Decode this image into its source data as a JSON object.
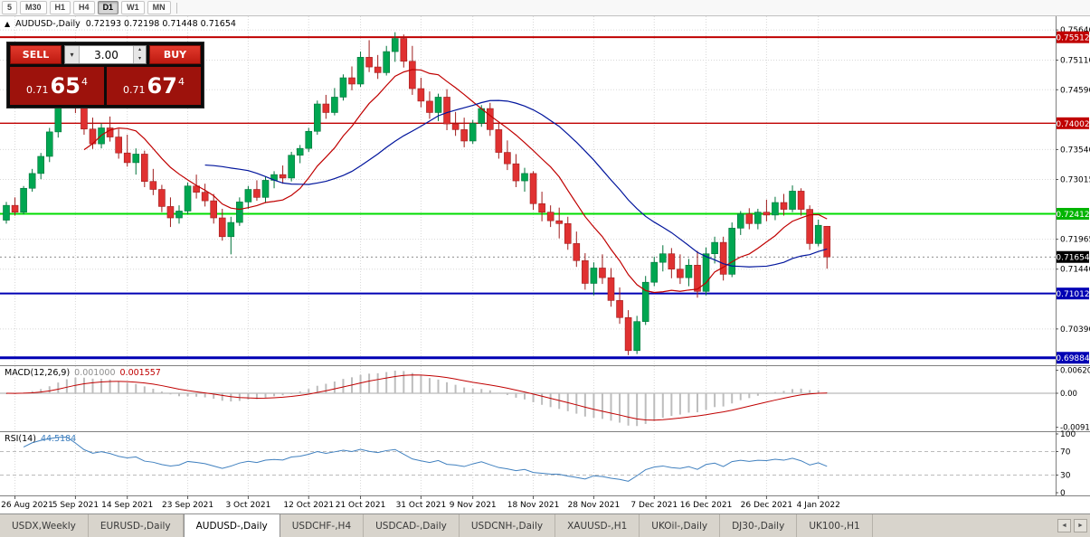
{
  "icons": {
    "chart": "▲",
    "caret_down": "▾",
    "caret_up": "▴",
    "scroll_left": "◄",
    "scroll_right": "►"
  },
  "toolbar": {
    "timeframes": [
      {
        "label": "5",
        "active": false
      },
      {
        "label": "M30",
        "active": false
      },
      {
        "label": "H1",
        "active": false
      },
      {
        "label": "H4",
        "active": false
      },
      {
        "label": "D1",
        "active": true
      },
      {
        "label": "W1",
        "active": false
      },
      {
        "label": "MN",
        "active": false
      }
    ]
  },
  "chart": {
    "symbol": "AUDUSD-,Daily",
    "ohlc": "0.72193 0.72198 0.71448 0.71654"
  },
  "trade_panel": {
    "sell_label": "SELL",
    "buy_label": "BUY",
    "volume": "3.00",
    "sell_base": "0.71",
    "sell_big": "65",
    "sell_sup": "4",
    "buy_base": "0.71",
    "buy_big": "67",
    "buy_sup": "4"
  },
  "tabs": [
    {
      "label": "USDX,Weekly",
      "active": false
    },
    {
      "label": "EURUSD-,Daily",
      "active": false
    },
    {
      "label": "AUDUSD-,Daily",
      "active": true
    },
    {
      "label": "USDCHF-,H4",
      "active": false
    },
    {
      "label": "USDCAD-,Daily",
      "active": false
    },
    {
      "label": "USDCNH-,Daily",
      "active": false
    },
    {
      "label": "XAUUSD-,H1",
      "active": false
    },
    {
      "label": "UKOil-,Daily",
      "active": false
    },
    {
      "label": "DJ30-,Daily",
      "active": false
    },
    {
      "label": "UK100-,H1",
      "active": false
    }
  ],
  "chart_data": {
    "type": "candlestick",
    "symbol": "AUDUSD-",
    "timeframe": "Daily",
    "ohlc_current": {
      "open": 0.72193,
      "high": 0.72198,
      "low": 0.71448,
      "close": 0.71654
    },
    "current_price": {
      "label": "0.71654",
      "price": 0.71654
    },
    "colors": {
      "bull": "#00A651",
      "bull_border": "#00733A",
      "bear": "#E03131",
      "bear_border": "#9E1C1C",
      "grid": "#D8D8D8",
      "macd_hist": "#BDBDBD",
      "macd_signal": "#C00000"
    },
    "y_ticks": [
      {
        "label": "0.75640",
        "price": 0.7564,
        "style": "grid"
      },
      {
        "label": "0.75512",
        "price": 0.75512,
        "style": "red"
      },
      {
        "label": "0.75110",
        "price": 0.7511,
        "style": "grid"
      },
      {
        "label": "0.74590",
        "price": 0.7459,
        "style": "grid"
      },
      {
        "label": "0.74002",
        "price": 0.74002,
        "style": "red"
      },
      {
        "label": "0.73540",
        "price": 0.7354,
        "style": "grid"
      },
      {
        "label": "0.73015",
        "price": 0.73015,
        "style": "grid"
      },
      {
        "label": "0.72412",
        "price": 0.72412,
        "style": "green"
      },
      {
        "label": "0.71965",
        "price": 0.71965,
        "style": "grid"
      },
      {
        "label": "0.71654",
        "price": 0.71654,
        "style": "black"
      },
      {
        "label": "0.71440",
        "price": 0.7144,
        "style": "grid"
      },
      {
        "label": "0.71012",
        "price": 0.71012,
        "style": "blue"
      },
      {
        "label": "0.70390",
        "price": 0.7039,
        "style": "grid"
      },
      {
        "label": "0.69884",
        "price": 0.69884,
        "style": "blue"
      }
    ],
    "hlines": [
      {
        "price": 0.75512,
        "color": "#C00000",
        "width": 2
      },
      {
        "price": 0.74002,
        "color": "#C00000",
        "width": 1.3
      },
      {
        "price": 0.72412,
        "color": "#00DC00",
        "width": 2
      },
      {
        "price": 0.71012,
        "color": "#0000B4",
        "width": 2
      },
      {
        "price": 0.69884,
        "color": "#0000B4",
        "width": 3
      }
    ],
    "x_ticks": [
      {
        "label": "26 Aug 2021",
        "i": 1
      },
      {
        "label": "5 Sep 2021",
        "i": 8
      },
      {
        "label": "14 Sep 2021",
        "i": 14
      },
      {
        "label": "23 Sep 2021",
        "i": 21
      },
      {
        "label": "3 Oct 2021",
        "i": 28
      },
      {
        "label": "12 Oct 2021",
        "i": 35
      },
      {
        "label": "21 Oct 2021",
        "i": 41
      },
      {
        "label": "31 Oct 2021",
        "i": 48
      },
      {
        "label": "9 Nov 2021",
        "i": 54
      },
      {
        "label": "18 Nov 2021",
        "i": 61
      },
      {
        "label": "28 Nov 2021",
        "i": 68
      },
      {
        "label": "7 Dec 2021",
        "i": 75
      },
      {
        "label": "16 Dec 2021",
        "i": 81
      },
      {
        "label": "26 Dec 2021",
        "i": 88
      },
      {
        "label": "4 Jan 2022",
        "i": 94
      }
    ],
    "ma": [
      {
        "name": "ma-fast-line",
        "type": "sma",
        "period": 10,
        "color": "#C00000"
      },
      {
        "name": "ma-slow-line",
        "type": "sma",
        "period": 24,
        "color": "#00149C"
      }
    ],
    "macd": {
      "title": "MACD(12,26,9)",
      "value1": "0.001000",
      "value2": "0.001557",
      "axis": [
        "0.0062010",
        "0.00",
        "-0.0091910"
      ],
      "fast": 12,
      "slow": 26,
      "signal": 9
    },
    "rsi": {
      "title": "RSI(14)",
      "value": "44.5184",
      "axis": [
        "100",
        "70",
        "30",
        "0"
      ],
      "levels": [
        70,
        30
      ],
      "period": 14,
      "color": "#4080BF"
    },
    "candles": [
      [
        0.723,
        0.7262,
        0.7224,
        0.7256
      ],
      [
        0.7256,
        0.727,
        0.7238,
        0.7244
      ],
      [
        0.7244,
        0.729,
        0.724,
        0.7286
      ],
      [
        0.7286,
        0.732,
        0.728,
        0.7312
      ],
      [
        0.7312,
        0.7348,
        0.7302,
        0.7342
      ],
      [
        0.7342,
        0.7392,
        0.7332,
        0.7385
      ],
      [
        0.7385,
        0.7445,
        0.7375,
        0.7438
      ],
      [
        0.7438,
        0.7478,
        0.7428,
        0.7455
      ],
      [
        0.7455,
        0.747,
        0.7418,
        0.7428
      ],
      [
        0.7428,
        0.7444,
        0.738,
        0.739
      ],
      [
        0.739,
        0.741,
        0.7355,
        0.7364
      ],
      [
        0.7364,
        0.74,
        0.7356,
        0.7392
      ],
      [
        0.7392,
        0.7412,
        0.7368,
        0.7376
      ],
      [
        0.7376,
        0.739,
        0.7338,
        0.7348
      ],
      [
        0.7348,
        0.738,
        0.7324,
        0.7331
      ],
      [
        0.7331,
        0.7356,
        0.731,
        0.7346
      ],
      [
        0.7346,
        0.7352,
        0.7288,
        0.7298
      ],
      [
        0.7298,
        0.732,
        0.7274,
        0.7284
      ],
      [
        0.7284,
        0.7292,
        0.7244,
        0.7254
      ],
      [
        0.7254,
        0.727,
        0.7218,
        0.7234
      ],
      [
        0.7234,
        0.7256,
        0.7224,
        0.7246
      ],
      [
        0.7246,
        0.7296,
        0.724,
        0.729
      ],
      [
        0.729,
        0.731,
        0.7268,
        0.7279
      ],
      [
        0.7279,
        0.7294,
        0.7254,
        0.7264
      ],
      [
        0.7264,
        0.7276,
        0.7224,
        0.7234
      ],
      [
        0.7234,
        0.725,
        0.7194,
        0.7201
      ],
      [
        0.7201,
        0.7236,
        0.717,
        0.7226
      ],
      [
        0.7226,
        0.727,
        0.722,
        0.7262
      ],
      [
        0.7262,
        0.729,
        0.725,
        0.7284
      ],
      [
        0.7284,
        0.73,
        0.7264,
        0.727
      ],
      [
        0.727,
        0.7306,
        0.726,
        0.73
      ],
      [
        0.73,
        0.7316,
        0.7286,
        0.731
      ],
      [
        0.731,
        0.7326,
        0.7294,
        0.7304
      ],
      [
        0.7304,
        0.735,
        0.7298,
        0.7344
      ],
      [
        0.7344,
        0.7362,
        0.733,
        0.7356
      ],
      [
        0.7356,
        0.7392,
        0.735,
        0.7386
      ],
      [
        0.7386,
        0.744,
        0.738,
        0.7434
      ],
      [
        0.7434,
        0.745,
        0.7408,
        0.7419
      ],
      [
        0.7419,
        0.7462,
        0.7414,
        0.7446
      ],
      [
        0.7446,
        0.7486,
        0.744,
        0.748
      ],
      [
        0.748,
        0.75,
        0.7458,
        0.7469
      ],
      [
        0.7469,
        0.7526,
        0.7464,
        0.7516
      ],
      [
        0.7516,
        0.7546,
        0.749,
        0.7499
      ],
      [
        0.7499,
        0.752,
        0.7478,
        0.7489
      ],
      [
        0.7489,
        0.7536,
        0.7484,
        0.7526
      ],
      [
        0.7526,
        0.756,
        0.7508,
        0.7549
      ],
      [
        0.7549,
        0.7556,
        0.7498,
        0.7509
      ],
      [
        0.7509,
        0.7536,
        0.745,
        0.7461
      ],
      [
        0.7461,
        0.748,
        0.7428,
        0.7439
      ],
      [
        0.7439,
        0.7456,
        0.7408,
        0.7419
      ],
      [
        0.7419,
        0.7452,
        0.7404,
        0.7446
      ],
      [
        0.7446,
        0.746,
        0.7388,
        0.7399
      ],
      [
        0.7399,
        0.742,
        0.7378,
        0.7389
      ],
      [
        0.7389,
        0.741,
        0.7358,
        0.7369
      ],
      [
        0.7369,
        0.7406,
        0.7364,
        0.74
      ],
      [
        0.74,
        0.7432,
        0.7394,
        0.7426
      ],
      [
        0.7426,
        0.7436,
        0.7378,
        0.7389
      ],
      [
        0.7389,
        0.74,
        0.7338,
        0.7349
      ],
      [
        0.7349,
        0.737,
        0.7318,
        0.7329
      ],
      [
        0.7329,
        0.7346,
        0.7288,
        0.7299
      ],
      [
        0.7299,
        0.7322,
        0.728,
        0.7312
      ],
      [
        0.7312,
        0.7316,
        0.7248,
        0.7259
      ],
      [
        0.7259,
        0.728,
        0.7228,
        0.7244
      ],
      [
        0.7244,
        0.7256,
        0.7218,
        0.7229
      ],
      [
        0.7229,
        0.7252,
        0.7198,
        0.7224
      ],
      [
        0.7224,
        0.7236,
        0.7178,
        0.7189
      ],
      [
        0.7189,
        0.721,
        0.7148,
        0.7159
      ],
      [
        0.7159,
        0.7172,
        0.7108,
        0.7119
      ],
      [
        0.7119,
        0.7156,
        0.7098,
        0.7146
      ],
      [
        0.7146,
        0.717,
        0.7118,
        0.7129
      ],
      [
        0.7129,
        0.7146,
        0.7078,
        0.7089
      ],
      [
        0.7089,
        0.7112,
        0.7048,
        0.7059
      ],
      [
        0.7059,
        0.7072,
        0.6993,
        0.7001
      ],
      [
        0.7001,
        0.7062,
        0.6995,
        0.7052
      ],
      [
        0.7052,
        0.7132,
        0.7046,
        0.7121
      ],
      [
        0.7121,
        0.7166,
        0.7114,
        0.7156
      ],
      [
        0.7156,
        0.7186,
        0.714,
        0.7171
      ],
      [
        0.7171,
        0.7181,
        0.7128,
        0.7144
      ],
      [
        0.7144,
        0.717,
        0.7118,
        0.7129
      ],
      [
        0.7129,
        0.7162,
        0.7114,
        0.7151
      ],
      [
        0.7151,
        0.7176,
        0.7094,
        0.7105
      ],
      [
        0.7105,
        0.7182,
        0.7098,
        0.7171
      ],
      [
        0.7171,
        0.7201,
        0.7154,
        0.7191
      ],
      [
        0.7191,
        0.7201,
        0.7124,
        0.7135
      ],
      [
        0.7135,
        0.7226,
        0.713,
        0.7216
      ],
      [
        0.7216,
        0.7246,
        0.7204,
        0.7241
      ],
      [
        0.7241,
        0.7251,
        0.7214,
        0.7224
      ],
      [
        0.7224,
        0.725,
        0.7214,
        0.7244
      ],
      [
        0.7244,
        0.7266,
        0.7228,
        0.7239
      ],
      [
        0.7239,
        0.7271,
        0.723,
        0.7261
      ],
      [
        0.7261,
        0.7276,
        0.7238,
        0.7249
      ],
      [
        0.7249,
        0.7291,
        0.7244,
        0.7281
      ],
      [
        0.7281,
        0.7286,
        0.7238,
        0.7249
      ],
      [
        0.7249,
        0.7256,
        0.7178,
        0.7189
      ],
      [
        0.7189,
        0.7231,
        0.7184,
        0.7221
      ],
      [
        0.72193,
        0.72198,
        0.71448,
        0.71654
      ]
    ]
  }
}
